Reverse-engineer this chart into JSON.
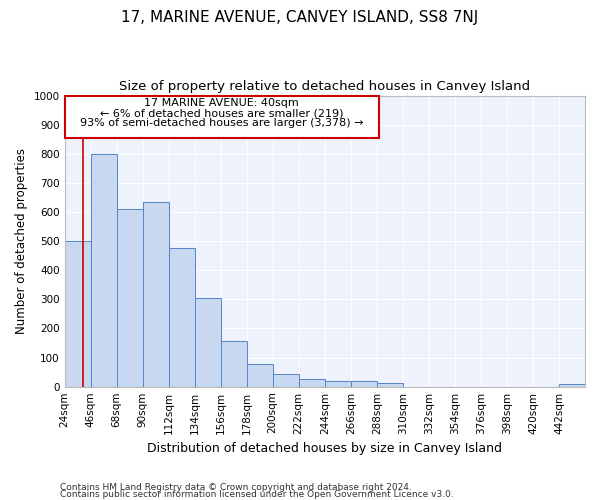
{
  "title": "17, MARINE AVENUE, CANVEY ISLAND, SS8 7NJ",
  "subtitle": "Size of property relative to detached houses in Canvey Island",
  "xlabel": "Distribution of detached houses by size in Canvey Island",
  "ylabel": "Number of detached properties",
  "footnote1": "Contains HM Land Registry data © Crown copyright and database right 2024.",
  "footnote2": "Contains public sector information licensed under the Open Government Licence v3.0.",
  "bar_edges": [
    24,
    46,
    68,
    90,
    112,
    134,
    156,
    178,
    200,
    222,
    244,
    266,
    288,
    310,
    332,
    354,
    376,
    398,
    420,
    442,
    464
  ],
  "bar_heights": [
    500,
    800,
    610,
    635,
    475,
    305,
    158,
    78,
    43,
    25,
    20,
    20,
    13,
    0,
    0,
    0,
    0,
    0,
    0,
    10
  ],
  "bar_color": "#c8d8f0",
  "bar_edge_color": "#5585c5",
  "property_size": 40,
  "red_line_color": "#cc0000",
  "annotation_line1": "17 MARINE AVENUE: 40sqm",
  "annotation_line2": "← 6% of detached houses are smaller (219)",
  "annotation_line3": "93% of semi-detached houses are larger (3,378) →",
  "annotation_box_color": "#cc0000",
  "ylim": [
    0,
    1000
  ],
  "yticks": [
    0,
    100,
    200,
    300,
    400,
    500,
    600,
    700,
    800,
    900,
    1000
  ],
  "background_color": "#eef2fc",
  "grid_color": "#ffffff",
  "title_fontsize": 11,
  "subtitle_fontsize": 9.5,
  "xlabel_fontsize": 9,
  "ylabel_fontsize": 8.5,
  "tick_fontsize": 7.5,
  "footnote_fontsize": 6.5
}
